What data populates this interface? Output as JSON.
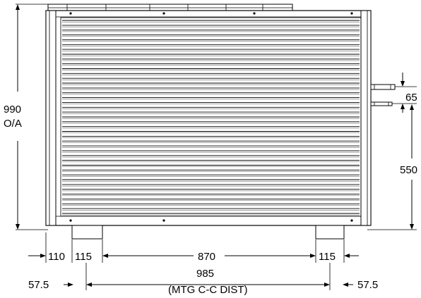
{
  "dimensions": {
    "overall_height_value": "990",
    "overall_height_note": "O/A",
    "pipe_spacing": "65",
    "pipe_height": "550",
    "left_offset": "110",
    "foot_left_width": "115",
    "foot_gap": "870",
    "foot_right_width": "115",
    "edge_left": "57.5",
    "mounting_distance": "985",
    "mounting_note": "(MTG C-C DIST)",
    "edge_right": "57.5"
  }
}
